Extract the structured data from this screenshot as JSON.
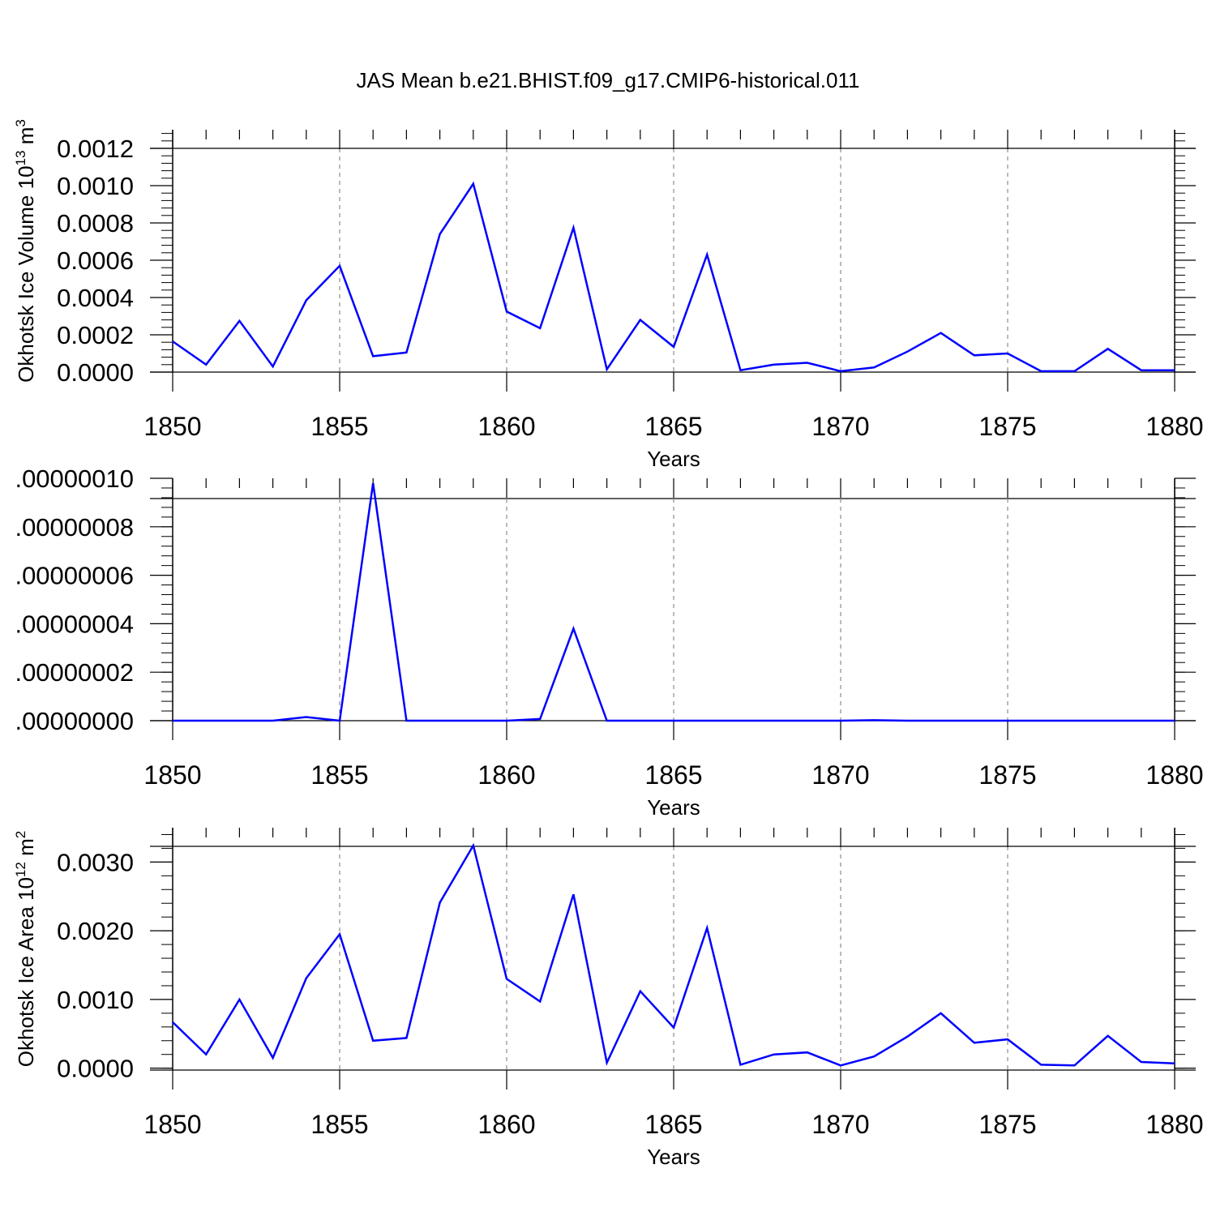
{
  "title": "JAS Mean b.e21.BHIST.f09_g17.CMIP6-historical.011",
  "colors": {
    "line": "#0000ff",
    "axis": "#000000",
    "grid": "#8c8c8c"
  },
  "chart_data": [
    {
      "type": "line",
      "xlabel": "Years",
      "ylabel": "Okhotsk Ice Volume 10",
      "ylabel_sup": "13",
      "ylabel_unit": " m",
      "ylabel_unit_sup": "3",
      "xlim": [
        1850,
        1880
      ],
      "ylim": [
        0,
        0.0013
      ],
      "x_ticks": [
        1850,
        1855,
        1860,
        1865,
        1870,
        1875,
        1880
      ],
      "y_ticks": [
        "0.0000",
        "0.0002",
        "0.0004",
        "0.0006",
        "0.0008",
        "0.0010",
        "0.0012"
      ],
      "y_tick_values": [
        0,
        0.0002,
        0.0004,
        0.0006,
        0.0008,
        0.001,
        0.0012
      ],
      "grid": "vertical dashed at major x ticks",
      "x": [
        1850,
        1851,
        1852,
        1853,
        1854,
        1855,
        1856,
        1857,
        1858,
        1859,
        1860,
        1861,
        1862,
        1863,
        1864,
        1865,
        1866,
        1867,
        1868,
        1869,
        1870,
        1871,
        1872,
        1873,
        1874,
        1875,
        1876,
        1877,
        1878,
        1879,
        1880
      ],
      "values": [
        0.000165,
        4e-05,
        0.000275,
        3e-05,
        0.000385,
        0.00057,
        8.5e-05,
        0.000105,
        0.00074,
        0.00101,
        0.000325,
        0.000235,
        0.000775,
        1.5e-05,
        0.00028,
        0.000135,
        0.00063,
        1e-05,
        4e-05,
        5e-05,
        5e-06,
        2.5e-05,
        0.00011,
        0.00021,
        9e-05,
        0.0001,
        5e-06,
        5e-06,
        0.000125,
        1e-05,
        1e-05
      ]
    },
    {
      "type": "line",
      "xlabel": "Years",
      "ylabel": "",
      "xlim": [
        1850,
        1880
      ],
      "ylim": [
        0,
        1e-07
      ],
      "x_ticks": [
        1850,
        1855,
        1860,
        1865,
        1870,
        1875,
        1880
      ],
      "y_ticks": [
        ".00000000",
        ".00000002",
        ".00000004",
        ".00000006",
        ".00000008",
        ".00000010"
      ],
      "y_tick_values": [
        0,
        2e-08,
        4e-08,
        6e-08,
        8e-08,
        1e-07
      ],
      "grid": "vertical dashed at major x ticks",
      "x": [
        1850,
        1851,
        1852,
        1853,
        1854,
        1855,
        1856,
        1857,
        1858,
        1859,
        1860,
        1861,
        1862,
        1863,
        1864,
        1865,
        1866,
        1867,
        1868,
        1869,
        1870,
        1871,
        1872,
        1873,
        1874,
        1875,
        1876,
        1877,
        1878,
        1879,
        1880
      ],
      "values": [
        0,
        0,
        0,
        0,
        1.5e-09,
        0,
        9.8e-08,
        0,
        0,
        0,
        0,
        7e-10,
        3.8e-08,
        0,
        0,
        0,
        0,
        0,
        0,
        0,
        0,
        2e-10,
        0,
        0,
        0,
        0,
        0,
        0,
        0,
        0,
        0
      ]
    },
    {
      "type": "line",
      "xlabel": "Years",
      "ylabel": "Okhotsk Ice Area 10",
      "ylabel_sup": "12",
      "ylabel_unit": " m",
      "ylabel_unit_sup": "2",
      "xlim": [
        1850,
        1880
      ],
      "ylim": [
        -0.00024,
        0.0035
      ],
      "x_ticks": [
        1850,
        1855,
        1860,
        1865,
        1870,
        1875,
        1880
      ],
      "y_ticks": [
        "0.0000",
        "0.0010",
        "0.0020",
        "0.0030"
      ],
      "y_tick_values": [
        0,
        0.001,
        0.002,
        0.003
      ],
      "grid": "vertical dashed at major x ticks",
      "x": [
        1850,
        1851,
        1852,
        1853,
        1854,
        1855,
        1856,
        1857,
        1858,
        1859,
        1860,
        1861,
        1862,
        1863,
        1864,
        1865,
        1866,
        1867,
        1868,
        1869,
        1870,
        1871,
        1872,
        1873,
        1874,
        1875,
        1876,
        1877,
        1878,
        1879,
        1880
      ],
      "values": [
        0.00067,
        0.0002,
        0.001,
        0.00015,
        0.00131,
        0.00195,
        0.0004,
        0.00044,
        0.00241,
        0.00324,
        0.0013,
        0.00097,
        0.00253,
        8e-05,
        0.00112,
        0.00059,
        0.00204,
        5e-05,
        0.0002,
        0.00023,
        4e-05,
        0.00017,
        0.00046,
        0.0008,
        0.00037,
        0.00042,
        5e-05,
        4e-05,
        0.00047,
        9e-05,
        7e-05
      ]
    }
  ]
}
